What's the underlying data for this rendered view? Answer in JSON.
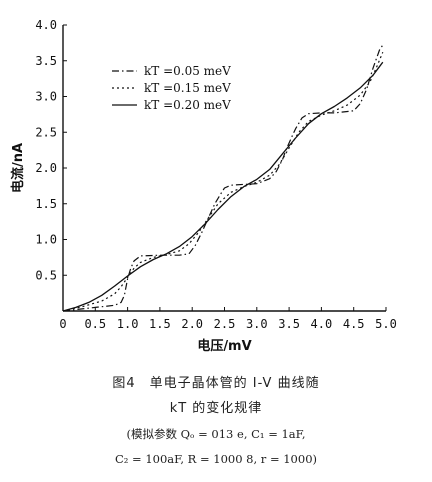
{
  "chart_data": {
    "type": "line",
    "title": "",
    "xlabel": "电压/mV",
    "ylabel": "电流/nA",
    "xlim": [
      0,
      5.0
    ],
    "ylim": [
      0,
      4.0
    ],
    "x_ticks": [
      "0",
      "0.5",
      "1.0",
      "1.5",
      "2.0",
      "2.5",
      "3.0",
      "3.5",
      "4.0",
      "4.5",
      "5.0"
    ],
    "y_ticks": [
      "0.5",
      "1.0",
      "1.5",
      "2.0",
      "2.5",
      "3.0",
      "3.5",
      "4.0"
    ],
    "grid": false,
    "legend_position": "top-left",
    "series": [
      {
        "name": "kT =0.05 meV",
        "style": "dash-dot",
        "x": [
          0,
          0.5,
          0.8,
          0.9,
          0.95,
          1.0,
          1.05,
          1.1,
          1.2,
          1.5,
          1.8,
          1.95,
          2.05,
          2.15,
          2.25,
          2.35,
          2.45,
          2.5,
          2.6,
          2.8,
          3.0,
          3.2,
          3.3,
          3.4,
          3.45,
          3.55,
          3.6,
          3.7,
          3.8,
          4.0,
          4.2,
          4.5,
          4.6,
          4.7,
          4.8,
          4.9,
          4.95
        ],
        "y": [
          0,
          0.05,
          0.08,
          0.12,
          0.22,
          0.45,
          0.6,
          0.7,
          0.77,
          0.78,
          0.78,
          0.8,
          0.92,
          1.1,
          1.3,
          1.5,
          1.65,
          1.72,
          1.76,
          1.77,
          1.78,
          1.85,
          1.95,
          2.12,
          2.25,
          2.45,
          2.55,
          2.7,
          2.76,
          2.77,
          2.77,
          2.8,
          2.9,
          3.1,
          3.4,
          3.65,
          3.72
        ]
      },
      {
        "name": "kT =0.15 meV",
        "style": "dotted",
        "x": [
          0,
          0.3,
          0.6,
          0.8,
          0.9,
          1.0,
          1.1,
          1.2,
          1.4,
          1.6,
          1.8,
          1.95,
          2.1,
          2.25,
          2.4,
          2.6,
          2.8,
          3.0,
          3.2,
          3.35,
          3.5,
          3.65,
          3.8,
          4.0,
          4.2,
          4.4,
          4.6,
          4.75,
          4.85,
          4.95
        ],
        "y": [
          0,
          0.06,
          0.14,
          0.24,
          0.34,
          0.47,
          0.6,
          0.68,
          0.75,
          0.79,
          0.84,
          0.94,
          1.1,
          1.3,
          1.5,
          1.66,
          1.74,
          1.8,
          1.9,
          2.05,
          2.28,
          2.5,
          2.65,
          2.74,
          2.8,
          2.88,
          3.02,
          3.2,
          3.4,
          3.62
        ]
      },
      {
        "name": "kT =0.20 meV",
        "style": "solid",
        "x": [
          0,
          0.2,
          0.4,
          0.6,
          0.8,
          1.0,
          1.2,
          1.4,
          1.6,
          1.8,
          2.0,
          2.2,
          2.4,
          2.6,
          2.8,
          3.0,
          3.2,
          3.4,
          3.6,
          3.8,
          4.0,
          4.2,
          4.4,
          4.6,
          4.8,
          4.95
        ],
        "y": [
          0,
          0.05,
          0.12,
          0.22,
          0.35,
          0.49,
          0.62,
          0.72,
          0.8,
          0.9,
          1.04,
          1.22,
          1.42,
          1.6,
          1.74,
          1.84,
          1.98,
          2.2,
          2.42,
          2.62,
          2.76,
          2.86,
          2.98,
          3.12,
          3.3,
          3.48
        ]
      }
    ]
  },
  "caption": {
    "title": "图4　单电子晶体管的 I-V 曲线随",
    "subtitle": "kT 的变化规律",
    "params_line1": "(模拟参数 Qₒ = 013 e, C₁ = 1aF,",
    "params_line2": "C₂ = 100aF, R = 1000 8, r = 1000)"
  }
}
